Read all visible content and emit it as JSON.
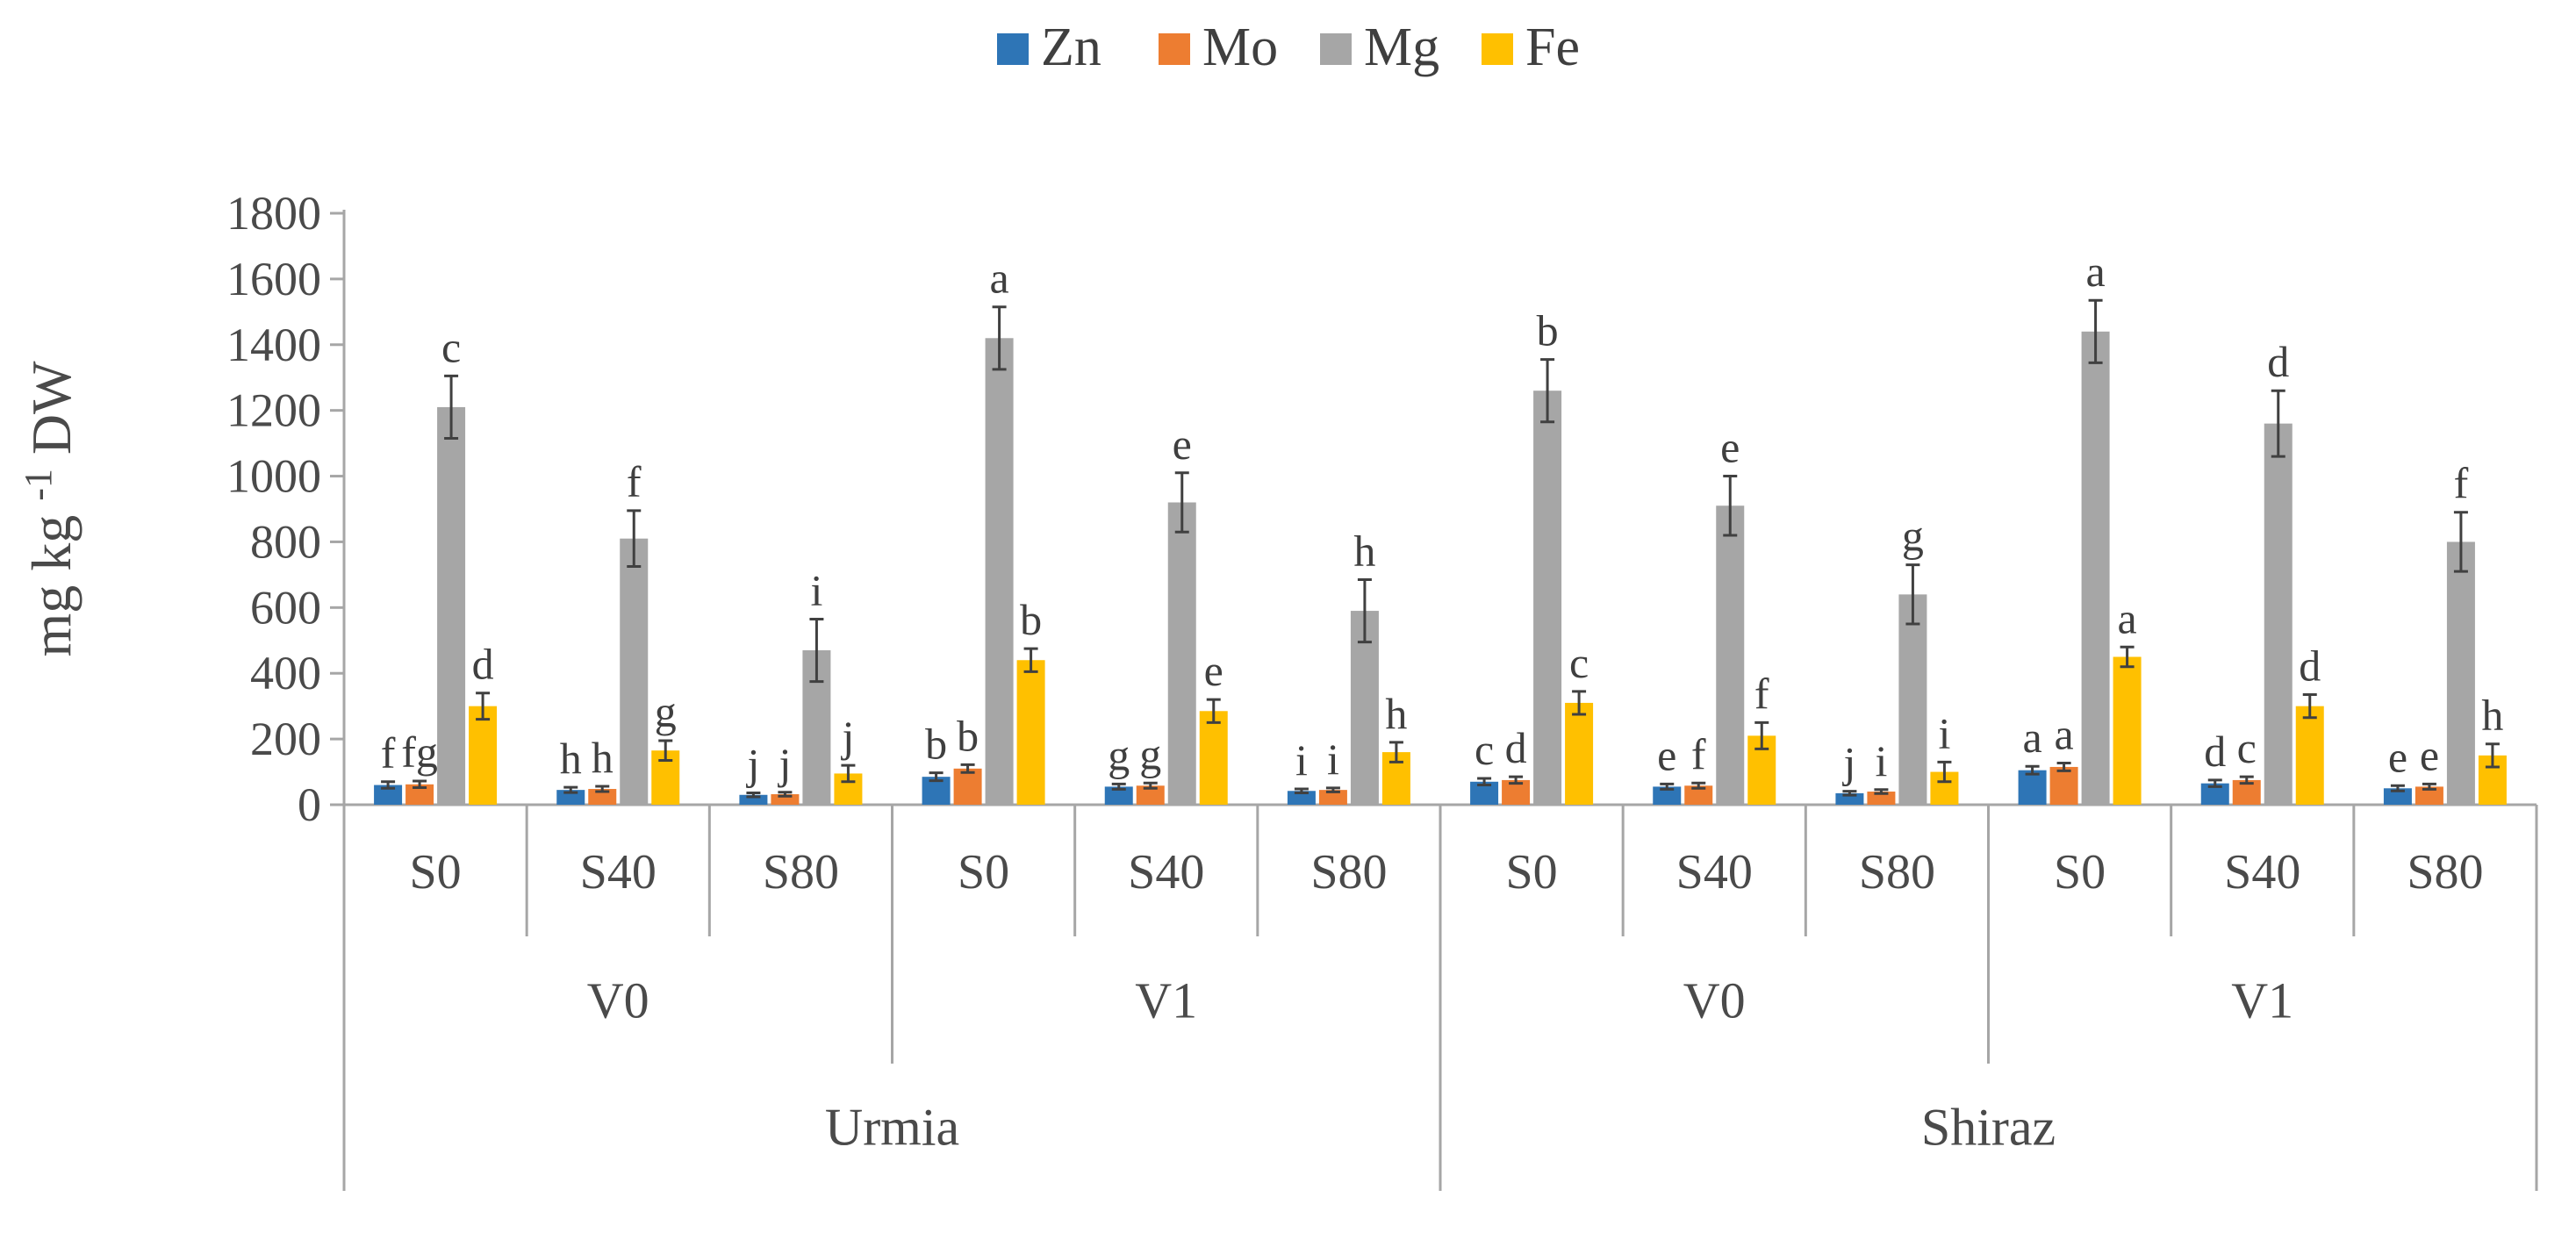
{
  "chart_data": {
    "type": "bar",
    "title": "",
    "ylabel": {
      "prefix": "mg kg",
      "superscript": "-1",
      "suffix": "DW"
    },
    "ylim": [
      0,
      1800
    ],
    "ytick_step": 200,
    "legend": {
      "position": "top",
      "entries": [
        {
          "name": "Zn",
          "color": "#2E75B6"
        },
        {
          "name": "Mo",
          "color": "#ED7D31"
        },
        {
          "name": "Mg",
          "color": "#A6A6A6"
        },
        {
          "name": "Fe",
          "color": "#FFC000"
        }
      ]
    },
    "error_bar_color": "#404040",
    "axis_line_color": "#A6A6A6",
    "text_color": "#4A4A4A",
    "letter_color": "#3F3F3F",
    "grid": false,
    "groups": [
      {
        "city": "Urmia",
        "cultivar": "V0",
        "salinity": "S0",
        "bars": [
          {
            "series": "Zn",
            "value": 60,
            "error": 10,
            "letter": "f"
          },
          {
            "series": "Mo",
            "value": 62,
            "error": 10,
            "letter": "fg"
          },
          {
            "series": "Mg",
            "value": 1210,
            "error": 95,
            "letter": "c"
          },
          {
            "series": "Fe",
            "value": 300,
            "error": 40,
            "letter": "d"
          }
        ]
      },
      {
        "city": "Urmia",
        "cultivar": "V0",
        "salinity": "S40",
        "bars": [
          {
            "series": "Zn",
            "value": 45,
            "error": 8,
            "letter": "h"
          },
          {
            "series": "Mo",
            "value": 48,
            "error": 8,
            "letter": "h"
          },
          {
            "series": "Mg",
            "value": 810,
            "error": 85,
            "letter": "f"
          },
          {
            "series": "Fe",
            "value": 165,
            "error": 30,
            "letter": "g"
          }
        ]
      },
      {
        "city": "Urmia",
        "cultivar": "V0",
        "salinity": "S80",
        "bars": [
          {
            "series": "Zn",
            "value": 30,
            "error": 6,
            "letter": "j"
          },
          {
            "series": "Mo",
            "value": 32,
            "error": 6,
            "letter": "j"
          },
          {
            "series": "Mg",
            "value": 470,
            "error": 95,
            "letter": "i"
          },
          {
            "series": "Fe",
            "value": 95,
            "error": 25,
            "letter": "j"
          }
        ]
      },
      {
        "city": "Urmia",
        "cultivar": "V1",
        "salinity": "S0",
        "bars": [
          {
            "series": "Zn",
            "value": 85,
            "error": 12,
            "letter": "b"
          },
          {
            "series": "Mo",
            "value": 110,
            "error": 12,
            "letter": "b"
          },
          {
            "series": "Mg",
            "value": 1420,
            "error": 95,
            "letter": "a"
          },
          {
            "series": "Fe",
            "value": 440,
            "error": 35,
            "letter": "b"
          }
        ]
      },
      {
        "city": "Urmia",
        "cultivar": "V1",
        "salinity": "S40",
        "bars": [
          {
            "series": "Zn",
            "value": 55,
            "error": 8,
            "letter": "g"
          },
          {
            "series": "Mo",
            "value": 58,
            "error": 8,
            "letter": "g"
          },
          {
            "series": "Mg",
            "value": 920,
            "error": 90,
            "letter": "e"
          },
          {
            "series": "Fe",
            "value": 285,
            "error": 35,
            "letter": "e"
          }
        ]
      },
      {
        "city": "Urmia",
        "cultivar": "V1",
        "salinity": "S80",
        "bars": [
          {
            "series": "Zn",
            "value": 42,
            "error": 6,
            "letter": "i"
          },
          {
            "series": "Mo",
            "value": 45,
            "error": 6,
            "letter": "i"
          },
          {
            "series": "Mg",
            "value": 590,
            "error": 95,
            "letter": "h"
          },
          {
            "series": "Fe",
            "value": 160,
            "error": 30,
            "letter": "h"
          }
        ]
      },
      {
        "city": "Shiraz",
        "cultivar": "V0",
        "salinity": "S0",
        "bars": [
          {
            "series": "Zn",
            "value": 70,
            "error": 10,
            "letter": "c"
          },
          {
            "series": "Mo",
            "value": 75,
            "error": 10,
            "letter": "d"
          },
          {
            "series": "Mg",
            "value": 1260,
            "error": 95,
            "letter": "b"
          },
          {
            "series": "Fe",
            "value": 310,
            "error": 35,
            "letter": "c"
          }
        ]
      },
      {
        "city": "Shiraz",
        "cultivar": "V0",
        "salinity": "S40",
        "bars": [
          {
            "series": "Zn",
            "value": 55,
            "error": 8,
            "letter": "e"
          },
          {
            "series": "Mo",
            "value": 58,
            "error": 8,
            "letter": "f"
          },
          {
            "series": "Mg",
            "value": 910,
            "error": 90,
            "letter": "e"
          },
          {
            "series": "Fe",
            "value": 210,
            "error": 40,
            "letter": "f"
          }
        ]
      },
      {
        "city": "Shiraz",
        "cultivar": "V0",
        "salinity": "S80",
        "bars": [
          {
            "series": "Zn",
            "value": 35,
            "error": 6,
            "letter": "j"
          },
          {
            "series": "Mo",
            "value": 40,
            "error": 6,
            "letter": "i"
          },
          {
            "series": "Mg",
            "value": 640,
            "error": 90,
            "letter": "g"
          },
          {
            "series": "Fe",
            "value": 100,
            "error": 30,
            "letter": "i"
          }
        ]
      },
      {
        "city": "Shiraz",
        "cultivar": "V1",
        "salinity": "S0",
        "bars": [
          {
            "series": "Zn",
            "value": 105,
            "error": 12,
            "letter": "a"
          },
          {
            "series": "Mo",
            "value": 115,
            "error": 12,
            "letter": "a"
          },
          {
            "series": "Mg",
            "value": 1440,
            "error": 95,
            "letter": "a"
          },
          {
            "series": "Fe",
            "value": 450,
            "error": 30,
            "letter": "a"
          }
        ]
      },
      {
        "city": "Shiraz",
        "cultivar": "V1",
        "salinity": "S40",
        "bars": [
          {
            "series": "Zn",
            "value": 65,
            "error": 10,
            "letter": "d"
          },
          {
            "series": "Mo",
            "value": 75,
            "error": 10,
            "letter": "c"
          },
          {
            "series": "Mg",
            "value": 1160,
            "error": 100,
            "letter": "d"
          },
          {
            "series": "Fe",
            "value": 300,
            "error": 35,
            "letter": "d"
          }
        ]
      },
      {
        "city": "Shiraz",
        "cultivar": "V1",
        "salinity": "S80",
        "bars": [
          {
            "series": "Zn",
            "value": 50,
            "error": 8,
            "letter": "e"
          },
          {
            "series": "Mo",
            "value": 55,
            "error": 8,
            "letter": "e"
          },
          {
            "series": "Mg",
            "value": 800,
            "error": 90,
            "letter": "f"
          },
          {
            "series": "Fe",
            "value": 150,
            "error": 35,
            "letter": "h"
          }
        ]
      }
    ]
  }
}
